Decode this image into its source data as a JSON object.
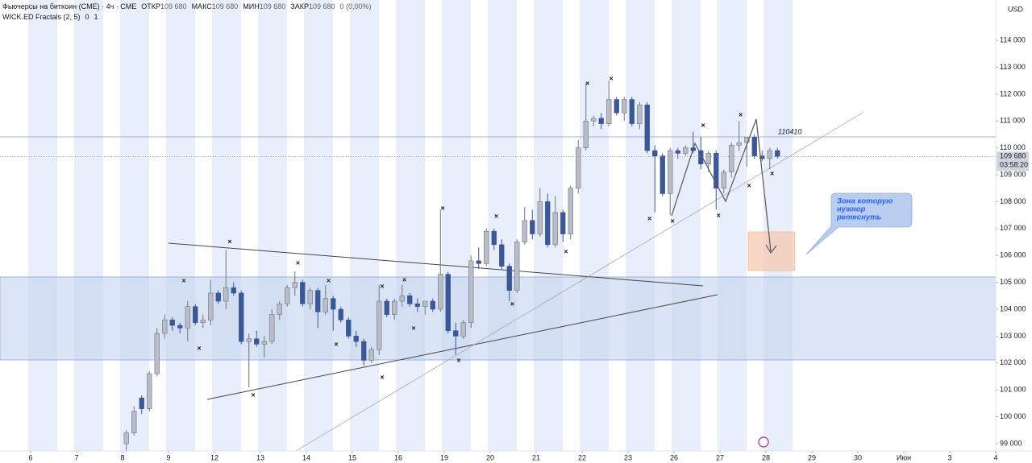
{
  "header": {
    "symbol": "Фьючерсы на биткоин (CME) · 4ч · CME",
    "open_label": "ОТКР",
    "open": "109 680",
    "high_label": "МАКС",
    "high": "109 680",
    "low_label": "МИН",
    "low": "109 680",
    "close_label": "ЗАКР",
    "close": "109 680",
    "change": "0 (0,00%)",
    "indicator": "WICK.ED Fractals (2, 5)",
    "indicator_v1": "0",
    "indicator_v2": "1"
  },
  "chart_data": {
    "type": "candlestick",
    "currency": "USD",
    "up_color": "#b9bdc7",
    "down_color": "#3c5796",
    "xlim": [
      -4,
      126
    ],
    "ylim": [
      98730,
      115500
    ],
    "xticks": [
      {
        "value": 0,
        "label": "6"
      },
      {
        "value": 6,
        "label": "7"
      },
      {
        "value": 12,
        "label": "8"
      },
      {
        "value": 18,
        "label": "9"
      },
      {
        "value": 24,
        "label": "12"
      },
      {
        "value": 30,
        "label": "13"
      },
      {
        "value": 36,
        "label": "14"
      },
      {
        "value": 42,
        "label": "15"
      },
      {
        "value": 48,
        "label": "16"
      },
      {
        "value": 54,
        "label": "19"
      },
      {
        "value": 60,
        "label": "20"
      },
      {
        "value": 66,
        "label": "21"
      },
      {
        "value": 72,
        "label": "22"
      },
      {
        "value": 78,
        "label": "23"
      },
      {
        "value": 84,
        "label": "26"
      },
      {
        "value": 90,
        "label": "27"
      },
      {
        "value": 96,
        "label": "28"
      },
      {
        "value": 102,
        "label": "29"
      },
      {
        "value": 108,
        "label": "30"
      },
      {
        "value": 114,
        "label": "Июн"
      },
      {
        "value": 120,
        "label": "3"
      },
      {
        "value": 126,
        "label": "4"
      }
    ],
    "yticks": [
      {
        "value": 99000,
        "label": "99 000"
      },
      {
        "value": 100000,
        "label": "100 000"
      },
      {
        "value": 101000,
        "label": "101 000"
      },
      {
        "value": 102000,
        "label": "102 000"
      },
      {
        "value": 103000,
        "label": "103 000"
      },
      {
        "value": 104000,
        "label": "104 000"
      },
      {
        "value": 105000,
        "label": "105 000"
      },
      {
        "value": 106000,
        "label": "106 000"
      },
      {
        "value": 107000,
        "label": "107 000"
      },
      {
        "value": 108000,
        "label": "108 000"
      },
      {
        "value": 109000,
        "label": "109 000"
      },
      {
        "value": 110000,
        "label": "110 000"
      },
      {
        "value": 111000,
        "label": "111 000"
      },
      {
        "value": 112000,
        "label": "112 000"
      },
      {
        "value": 113000,
        "label": "113 000"
      },
      {
        "value": 114000,
        "label": "114 000"
      }
    ],
    "candles": {
      "x": [
        12.5,
        13.5,
        14.5,
        15.5,
        16.5,
        17.5,
        18.5,
        19.5,
        20.5,
        21.5,
        22.5,
        23.5,
        24.5,
        25.5,
        26.5,
        27.5,
        28.5,
        29.5,
        30.5,
        31.5,
        32.5,
        33.5,
        34.5,
        35.5,
        36.5,
        37.5,
        38.5,
        39.5,
        40.5,
        41.5,
        42.5,
        43.5,
        44.5,
        45.5,
        46.5,
        47.5,
        48.5,
        49.5,
        50.5,
        51.5,
        52.5,
        53.5,
        54.5,
        55.5,
        56.5,
        57.5,
        58.5,
        59.5,
        60.5,
        61.5,
        62.5,
        63.5,
        64.5,
        65.5,
        66.5,
        67.5,
        68.5,
        69.5,
        70.5,
        71.5,
        72.5,
        73.5,
        74.5,
        75.5,
        76.5,
        77.5,
        78.5,
        79.5,
        80.5,
        81.5,
        82.5,
        83.5,
        84.5,
        85.5,
        86.5,
        87.5,
        88.5,
        89.5,
        90.5,
        91.5,
        92.5,
        93.5,
        94.5,
        95.5,
        96.5,
        97.5
      ],
      "open": [
        99000,
        99400,
        100700,
        100300,
        101600,
        103100,
        103600,
        103400,
        103300,
        104100,
        103500,
        103600,
        104600,
        104300,
        104800,
        104600,
        102800,
        102900,
        102700,
        102800,
        103800,
        104200,
        104800,
        105000,
        104200,
        104700,
        103900,
        104400,
        104000,
        103600,
        103000,
        102800,
        102100,
        102500,
        104300,
        103800,
        104300,
        104500,
        104200,
        104100,
        104300,
        104000,
        105300,
        103200,
        103000,
        103500,
        105800,
        105700,
        106900,
        106400,
        105600,
        104700,
        106500,
        107300,
        106800,
        108000,
        106400,
        107600,
        106800,
        108500,
        110000,
        111000,
        111100,
        110900,
        111800,
        111300,
        111800,
        110900,
        111600,
        109900,
        109700,
        108300,
        109900,
        109800,
        110000,
        109900,
        109400,
        109800,
        108500,
        109100,
        110100,
        110200,
        110400,
        109700,
        109600,
        109900
      ],
      "high": [
        99500,
        100400,
        100800,
        101700,
        103300,
        103800,
        103700,
        103500,
        104300,
        104200,
        103800,
        105100,
        104700,
        106200,
        105000,
        104700,
        103100,
        103200,
        103000,
        104000,
        104300,
        104900,
        105400,
        105100,
        104800,
        104800,
        104900,
        104500,
        104100,
        103700,
        103200,
        102900,
        102600,
        104900,
        104400,
        104400,
        104900,
        104600,
        104400,
        104300,
        104400,
        107700,
        105400,
        103500,
        103600,
        106000,
        106300,
        107000,
        107000,
        106600,
        105700,
        106600,
        107800,
        107700,
        108500,
        108300,
        108200,
        107700,
        108600,
        110300,
        112400,
        111200,
        111300,
        112500,
        111900,
        111900,
        111900,
        111700,
        111700,
        110100,
        109800,
        110000,
        110000,
        110100,
        110600,
        110400,
        109900,
        109900,
        109200,
        110200,
        111000,
        110400,
        110500,
        109900,
        110000,
        110000
      ],
      "low": [
        98700,
        99300,
        100100,
        100200,
        101500,
        102900,
        103200,
        103100,
        102800,
        103400,
        103300,
        103400,
        104200,
        104000,
        104500,
        102700,
        101100,
        102600,
        102200,
        102700,
        103600,
        104100,
        104500,
        104100,
        104000,
        103300,
        103800,
        103200,
        103500,
        102900,
        102600,
        101900,
        102000,
        102300,
        103700,
        103600,
        104100,
        104100,
        103900,
        103800,
        103900,
        103900,
        103100,
        102300,
        102900,
        103300,
        105500,
        105600,
        106200,
        105500,
        104300,
        104600,
        106400,
        106600,
        106700,
        106300,
        106300,
        106500,
        106600,
        108300,
        109900,
        110800,
        110700,
        110800,
        111200,
        111000,
        110800,
        110700,
        109800,
        107600,
        108200,
        107500,
        109600,
        109700,
        109800,
        109200,
        109100,
        107700,
        108300,
        108900,
        109900,
        109300,
        109600,
        109500,
        109200,
        109600
      ],
      "close": [
        99400,
        100200,
        100300,
        101600,
        103100,
        103600,
        103400,
        103300,
        104100,
        103500,
        103600,
        104600,
        104300,
        104800,
        104600,
        102800,
        102900,
        102700,
        102800,
        103800,
        104200,
        104800,
        105000,
        104200,
        104700,
        103900,
        104400,
        104000,
        103600,
        103000,
        102800,
        102100,
        102500,
        104300,
        103800,
        104300,
        104500,
        104200,
        104100,
        104300,
        104000,
        105300,
        103200,
        103000,
        103500,
        105800,
        105700,
        106900,
        106400,
        105600,
        104700,
        106500,
        107300,
        106800,
        108000,
        106400,
        107600,
        106800,
        108500,
        110000,
        111000,
        111100,
        110900,
        111800,
        111300,
        111800,
        110900,
        111600,
        109900,
        109700,
        108300,
        109900,
        109800,
        110000,
        109900,
        109400,
        109800,
        108500,
        109100,
        110100,
        110200,
        110400,
        109700,
        109600,
        109900,
        109680
      ]
    },
    "fractals": {
      "x": [
        20.0,
        22.0,
        26.0,
        29.05,
        34.9,
        38.9,
        39.9,
        45.9,
        45.9,
        48.8,
        50.0,
        53.8,
        55.9,
        60.8,
        62.9,
        69.9,
        72.7,
        75.8,
        80.8,
        83.8,
        87.8,
        89.8,
        92.7,
        93.8,
        96.8
      ],
      "values": [
        105050,
        102530,
        106490,
        100800,
        105710,
        105050,
        102680,
        104840,
        101450,
        105080,
        103280,
        107740,
        102080,
        107440,
        104180,
        106130,
        112380,
        112560,
        107350,
        107260,
        110830,
        107470,
        111220,
        108580,
        109030
      ]
    },
    "price_line": 110410,
    "last_price": {
      "value": 109680,
      "label": "109 680"
    },
    "countdown": "03:58:20",
    "note": [
      "Зона которую",
      "нужнор",
      "ретеснуть"
    ]
  }
}
